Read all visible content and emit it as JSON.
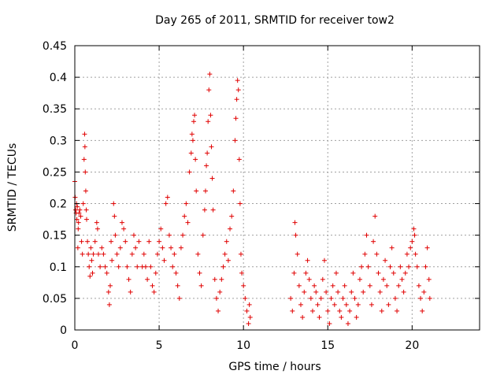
{
  "chart_data": {
    "type": "scatter",
    "title": "Day 265 of 2011, SRMTID for receiver tow2",
    "xlabel": "GPS time / hours",
    "ylabel": "SRMTID / TECUs",
    "xlim": [
      0,
      24
    ],
    "ylim": [
      0,
      0.45
    ],
    "xticks": [
      0,
      5,
      10,
      15,
      20
    ],
    "xtick_labels": [
      "0",
      "5",
      "10",
      "15",
      "20"
    ],
    "yticks": [
      0,
      0.05,
      0.1,
      0.15,
      0.2,
      0.25,
      0.3,
      0.35,
      0.4,
      0.45
    ],
    "ytick_labels": [
      "0",
      "0.05",
      "0.1",
      "0.15",
      "0.2",
      "0.25",
      "0.3",
      "0.35",
      "0.4",
      "0.45"
    ],
    "grid": true,
    "marker": "+",
    "series": [
      {
        "name": "SRMTID",
        "color": "#e00000",
        "points": [
          [
            0.0,
            0.235
          ],
          [
            0.02,
            0.21
          ],
          [
            0.05,
            0.19
          ],
          [
            0.08,
            0.185
          ],
          [
            0.1,
            0.2
          ],
          [
            0.12,
            0.175
          ],
          [
            0.15,
            0.195
          ],
          [
            0.18,
            0.13
          ],
          [
            0.2,
            0.16
          ],
          [
            0.22,
            0.17
          ],
          [
            0.25,
            0.185
          ],
          [
            0.3,
            0.19
          ],
          [
            0.35,
            0.18
          ],
          [
            0.4,
            0.14
          ],
          [
            0.45,
            0.12
          ],
          [
            0.5,
            0.2
          ],
          [
            0.55,
            0.27
          ],
          [
            0.58,
            0.31
          ],
          [
            0.6,
            0.29
          ],
          [
            0.62,
            0.25
          ],
          [
            0.65,
            0.22
          ],
          [
            0.68,
            0.19
          ],
          [
            0.7,
            0.175
          ],
          [
            0.75,
            0.14
          ],
          [
            0.8,
            0.12
          ],
          [
            0.85,
            0.1
          ],
          [
            0.9,
            0.085
          ],
          [
            0.95,
            0.13
          ],
          [
            1.0,
            0.11
          ],
          [
            1.05,
            0.09
          ],
          [
            1.1,
            0.12
          ],
          [
            1.2,
            0.14
          ],
          [
            1.3,
            0.17
          ],
          [
            1.35,
            0.16
          ],
          [
            1.4,
            0.12
          ],
          [
            1.5,
            0.1
          ],
          [
            1.6,
            0.13
          ],
          [
            1.7,
            0.12
          ],
          [
            1.8,
            0.1
          ],
          [
            1.9,
            0.09
          ],
          [
            2.0,
            0.06
          ],
          [
            2.05,
            0.04
          ],
          [
            2.1,
            0.07
          ],
          [
            2.15,
            0.14
          ],
          [
            2.2,
            0.11
          ],
          [
            2.3,
            0.2
          ],
          [
            2.35,
            0.18
          ],
          [
            2.4,
            0.15
          ],
          [
            2.5,
            0.12
          ],
          [
            2.6,
            0.1
          ],
          [
            2.7,
            0.13
          ],
          [
            2.8,
            0.17
          ],
          [
            2.9,
            0.16
          ],
          [
            3.0,
            0.14
          ],
          [
            3.1,
            0.1
          ],
          [
            3.2,
            0.08
          ],
          [
            3.3,
            0.06
          ],
          [
            3.4,
            0.12
          ],
          [
            3.5,
            0.15
          ],
          [
            3.6,
            0.13
          ],
          [
            3.7,
            0.1
          ],
          [
            3.8,
            0.14
          ],
          [
            4.0,
            0.1
          ],
          [
            4.1,
            0.12
          ],
          [
            4.2,
            0.1
          ],
          [
            4.3,
            0.08
          ],
          [
            4.4,
            0.14
          ],
          [
            4.5,
            0.1
          ],
          [
            4.6,
            0.07
          ],
          [
            4.7,
            0.06
          ],
          [
            4.8,
            0.09
          ],
          [
            4.9,
            0.12
          ],
          [
            5.0,
            0.14
          ],
          [
            5.1,
            0.16
          ],
          [
            5.2,
            0.13
          ],
          [
            5.3,
            0.11
          ],
          [
            5.4,
            0.2
          ],
          [
            5.5,
            0.21
          ],
          [
            5.6,
            0.15
          ],
          [
            5.7,
            0.13
          ],
          [
            5.8,
            0.1
          ],
          [
            5.9,
            0.12
          ],
          [
            6.0,
            0.09
          ],
          [
            6.1,
            0.07
          ],
          [
            6.2,
            0.05
          ],
          [
            6.3,
            0.13
          ],
          [
            6.4,
            0.15
          ],
          [
            6.5,
            0.18
          ],
          [
            6.6,
            0.2
          ],
          [
            6.7,
            0.17
          ],
          [
            6.8,
            0.25
          ],
          [
            6.9,
            0.28
          ],
          [
            6.95,
            0.31
          ],
          [
            7.0,
            0.3
          ],
          [
            7.05,
            0.33
          ],
          [
            7.1,
            0.34
          ],
          [
            7.15,
            0.27
          ],
          [
            7.2,
            0.22
          ],
          [
            7.3,
            0.12
          ],
          [
            7.4,
            0.09
          ],
          [
            7.5,
            0.07
          ],
          [
            7.6,
            0.15
          ],
          [
            7.7,
            0.19
          ],
          [
            7.75,
            0.22
          ],
          [
            7.8,
            0.26
          ],
          [
            7.85,
            0.28
          ],
          [
            7.9,
            0.33
          ],
          [
            7.95,
            0.38
          ],
          [
            8.0,
            0.405
          ],
          [
            8.05,
            0.34
          ],
          [
            8.1,
            0.29
          ],
          [
            8.15,
            0.24
          ],
          [
            8.2,
            0.19
          ],
          [
            8.3,
            0.08
          ],
          [
            8.4,
            0.05
          ],
          [
            8.5,
            0.03
          ],
          [
            8.6,
            0.06
          ],
          [
            8.7,
            0.08
          ],
          [
            8.8,
            0.1
          ],
          [
            8.9,
            0.12
          ],
          [
            9.0,
            0.14
          ],
          [
            9.1,
            0.11
          ],
          [
            9.2,
            0.16
          ],
          [
            9.3,
            0.18
          ],
          [
            9.4,
            0.22
          ],
          [
            9.5,
            0.3
          ],
          [
            9.55,
            0.335
          ],
          [
            9.6,
            0.365
          ],
          [
            9.65,
            0.395
          ],
          [
            9.7,
            0.38
          ],
          [
            9.75,
            0.27
          ],
          [
            9.8,
            0.2
          ],
          [
            9.85,
            0.12
          ],
          [
            9.9,
            0.09
          ],
          [
            10.0,
            0.07
          ],
          [
            10.1,
            0.05
          ],
          [
            10.2,
            0.03
          ],
          [
            10.3,
            0.01
          ],
          [
            10.35,
            0.04
          ],
          [
            10.4,
            0.02
          ],
          [
            12.8,
            0.05
          ],
          [
            12.9,
            0.03
          ],
          [
            13.0,
            0.09
          ],
          [
            13.05,
            0.17
          ],
          [
            13.1,
            0.15
          ],
          [
            13.2,
            0.12
          ],
          [
            13.3,
            0.07
          ],
          [
            13.4,
            0.04
          ],
          [
            13.5,
            0.02
          ],
          [
            13.6,
            0.06
          ],
          [
            13.7,
            0.09
          ],
          [
            13.8,
            0.11
          ],
          [
            13.9,
            0.08
          ],
          [
            14.0,
            0.05
          ],
          [
            14.1,
            0.03
          ],
          [
            14.2,
            0.07
          ],
          [
            14.3,
            0.06
          ],
          [
            14.4,
            0.04
          ],
          [
            14.5,
            0.02
          ],
          [
            14.6,
            0.05
          ],
          [
            14.7,
            0.08
          ],
          [
            14.8,
            0.11
          ],
          [
            14.9,
            0.06
          ],
          [
            15.0,
            0.03
          ],
          [
            15.1,
            0.01
          ],
          [
            15.2,
            0.05
          ],
          [
            15.3,
            0.07
          ],
          [
            15.4,
            0.04
          ],
          [
            15.5,
            0.09
          ],
          [
            15.6,
            0.06
          ],
          [
            15.7,
            0.03
          ],
          [
            15.8,
            0.02
          ],
          [
            15.9,
            0.05
          ],
          [
            16.0,
            0.07
          ],
          [
            16.1,
            0.04
          ],
          [
            16.2,
            0.01
          ],
          [
            16.3,
            0.03
          ],
          [
            16.4,
            0.06
          ],
          [
            16.5,
            0.09
          ],
          [
            16.6,
            0.05
          ],
          [
            16.7,
            0.02
          ],
          [
            16.8,
            0.04
          ],
          [
            16.9,
            0.08
          ],
          [
            17.0,
            0.1
          ],
          [
            17.1,
            0.06
          ],
          [
            17.2,
            0.12
          ],
          [
            17.3,
            0.15
          ],
          [
            17.4,
            0.1
          ],
          [
            17.5,
            0.07
          ],
          [
            17.6,
            0.04
          ],
          [
            17.7,
            0.14
          ],
          [
            17.8,
            0.18
          ],
          [
            17.9,
            0.12
          ],
          [
            18.0,
            0.09
          ],
          [
            18.1,
            0.06
          ],
          [
            18.2,
            0.03
          ],
          [
            18.3,
            0.08
          ],
          [
            18.4,
            0.11
          ],
          [
            18.5,
            0.07
          ],
          [
            18.6,
            0.04
          ],
          [
            18.7,
            0.1
          ],
          [
            18.8,
            0.13
          ],
          [
            18.9,
            0.09
          ],
          [
            19.0,
            0.05
          ],
          [
            19.1,
            0.03
          ],
          [
            19.2,
            0.07
          ],
          [
            19.3,
            0.1
          ],
          [
            19.4,
            0.08
          ],
          [
            19.5,
            0.06
          ],
          [
            19.6,
            0.09
          ],
          [
            19.7,
            0.12
          ],
          [
            19.8,
            0.1
          ],
          [
            19.9,
            0.13
          ],
          [
            20.0,
            0.14
          ],
          [
            20.1,
            0.16
          ],
          [
            20.15,
            0.15
          ],
          [
            20.2,
            0.12
          ],
          [
            20.3,
            0.1
          ],
          [
            20.4,
            0.07
          ],
          [
            20.5,
            0.05
          ],
          [
            20.6,
            0.03
          ],
          [
            20.7,
            0.06
          ],
          [
            20.8,
            0.1
          ],
          [
            20.9,
            0.13
          ],
          [
            21.0,
            0.08
          ],
          [
            21.05,
            0.05
          ]
        ]
      }
    ]
  }
}
